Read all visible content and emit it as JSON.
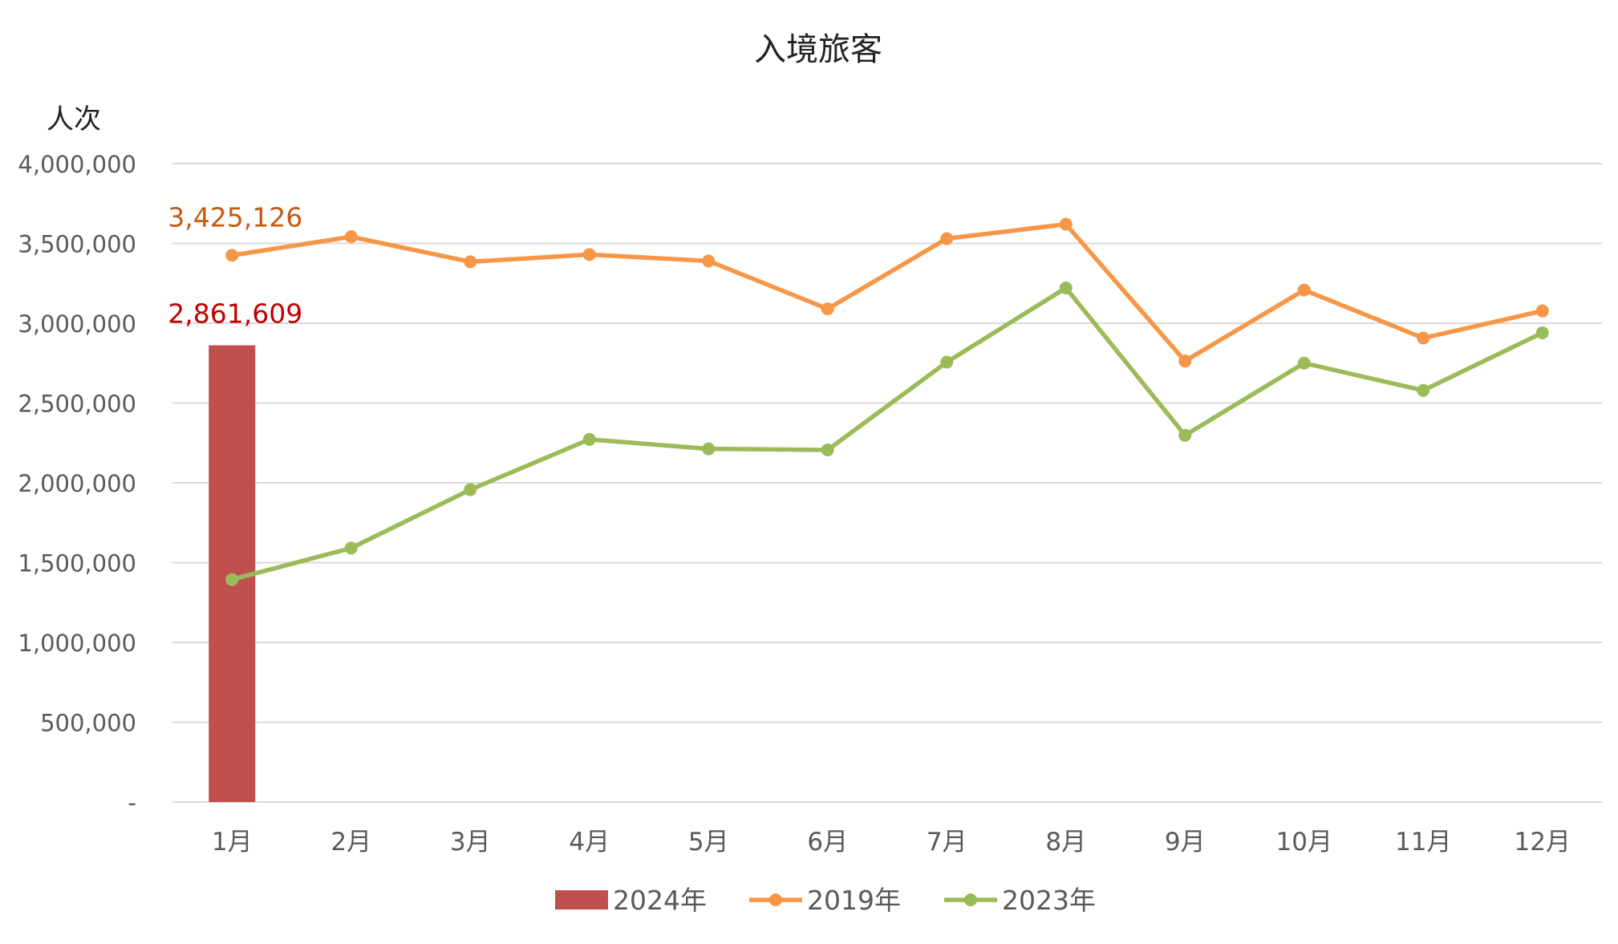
{
  "chart_data": {
    "type": "bar+line",
    "title": "入境旅客",
    "ylabel": "人次",
    "xlabel": "",
    "ylim": [
      0,
      4000000
    ],
    "yticks": [
      0,
      500000,
      1000000,
      1500000,
      2000000,
      2500000,
      3000000,
      3500000,
      4000000
    ],
    "ytick_labels": [
      "-",
      "500,000",
      "1,000,000",
      "1,500,000",
      "2,000,000",
      "2,500,000",
      "3,000,000",
      "3,500,000",
      "4,000,000"
    ],
    "categories": [
      "1月",
      "2月",
      "3月",
      "4月",
      "5月",
      "6月",
      "7月",
      "8月",
      "9月",
      "10月",
      "11月",
      "12月"
    ],
    "grid": true,
    "legend_position": "bottom",
    "series": [
      {
        "name": "2024年",
        "type": "bar",
        "color": "#C0504D",
        "values": [
          2861609,
          null,
          null,
          null,
          null,
          null,
          null,
          null,
          null,
          null,
          null,
          null
        ],
        "data_label": "2,861,609",
        "label_color": "#C00000"
      },
      {
        "name": "2019年",
        "type": "line",
        "color": "#F79646",
        "values": [
          3425126,
          3542000,
          3385000,
          3430000,
          3390000,
          3090000,
          3530000,
          3620000,
          2763000,
          3208000,
          2907000,
          3077000
        ],
        "data_label": "3,425,126",
        "label_color": "#C55A11"
      },
      {
        "name": "2023年",
        "type": "line",
        "color": "#9BBB59",
        "values": [
          1394000,
          1591000,
          1957000,
          2272000,
          2213000,
          2206000,
          2756000,
          3221000,
          2298000,
          2750000,
          2579000,
          2940000
        ]
      }
    ]
  }
}
